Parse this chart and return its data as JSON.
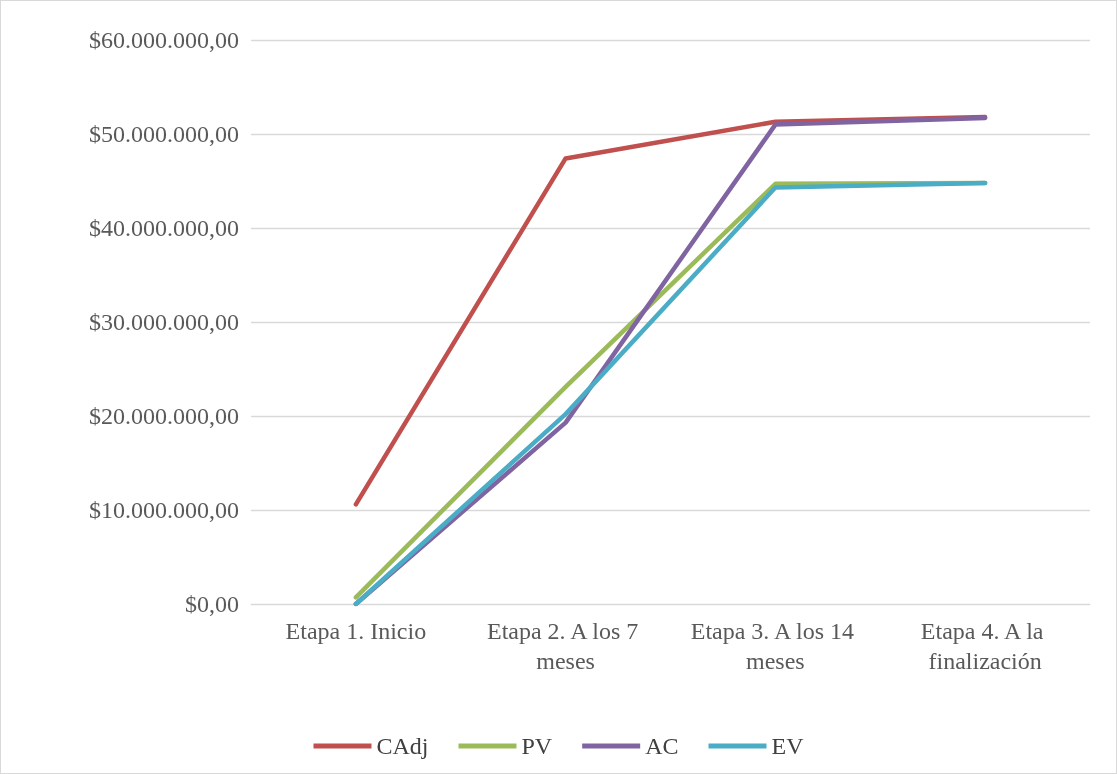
{
  "chart_data": {
    "type": "line",
    "categories": [
      "Etapa 1. Inicio",
      "Etapa 2. A los 7 meses",
      "Etapa 3. A los 14 meses",
      "Etapa 4. A la finalización"
    ],
    "series": [
      {
        "name": "CAdj",
        "color": "#c0504d",
        "values": [
          10600000,
          47400000,
          51300000,
          51800000
        ]
      },
      {
        "name": "PV",
        "color": "#9bbb59",
        "values": [
          700000,
          23100000,
          44700000,
          44800000
        ]
      },
      {
        "name": "AC",
        "color": "#8064a2",
        "values": [
          0,
          19300000,
          51000000,
          51700000
        ]
      },
      {
        "name": "EV",
        "color": "#4bacc6",
        "values": [
          0,
          20200000,
          44300000,
          44800000
        ]
      }
    ],
    "ylim": [
      0,
      60000000
    ],
    "yticks": [
      {
        "value": 0,
        "label": "$0,00"
      },
      {
        "value": 10000000,
        "label": "$10.000.000,00"
      },
      {
        "value": 20000000,
        "label": "$20.000.000,00"
      },
      {
        "value": 30000000,
        "label": "$30.000.000,00"
      },
      {
        "value": 40000000,
        "label": "$40.000.000,00"
      },
      {
        "value": 50000000,
        "label": "$50.000.000,00"
      },
      {
        "value": 60000000,
        "label": "$60.000.000,00"
      }
    ],
    "grid": "y",
    "legend": "bottom",
    "marker": "none",
    "line_style": "solid"
  }
}
